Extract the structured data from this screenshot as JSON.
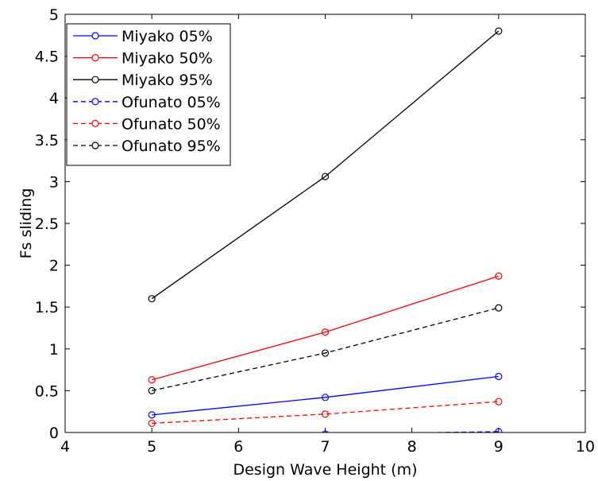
{
  "chart_data": {
    "type": "line",
    "title": "",
    "xlabel": "Design Wave Height (m)",
    "ylabel": "Fs sliding",
    "xlim": [
      4,
      10
    ],
    "ylim": [
      0,
      5
    ],
    "xticks": [
      4,
      5,
      6,
      7,
      8,
      9,
      10
    ],
    "yticks": [
      0,
      0.5,
      1,
      1.5,
      2,
      2.5,
      3,
      3.5,
      4,
      4.5,
      5
    ],
    "xtick_labels": [
      "4",
      "5",
      "6",
      "7",
      "8",
      "9",
      "10"
    ],
    "ytick_labels": [
      "0",
      "0.5",
      "1",
      "1.5",
      "2",
      "2.5",
      "3",
      "3.5",
      "4",
      "4.5",
      "5"
    ],
    "grid": false,
    "legend_position": "top-left",
    "x": [
      5,
      7,
      9
    ],
    "series": [
      {
        "name": "Miyako  05%",
        "values": [
          0.21,
          0.42,
          0.67
        ],
        "color": "#0000ff",
        "dash": "solid",
        "marker": "circle"
      },
      {
        "name": "Miyako  50%",
        "values": [
          0.63,
          1.2,
          1.87
        ],
        "color": "#ff0000",
        "dash": "solid",
        "marker": "circle"
      },
      {
        "name": "Miyako  95%",
        "values": [
          1.6,
          3.06,
          4.8
        ],
        "color": "#000000",
        "dash": "solid",
        "marker": "circle"
      },
      {
        "name": "Ofunato 05%",
        "values": [
          -0.05,
          -0.02,
          0.01
        ],
        "color": "#0000ff",
        "dash": "dashed",
        "marker": "circle"
      },
      {
        "name": "Ofunato 50%",
        "values": [
          0.11,
          0.22,
          0.37
        ],
        "color": "#ff0000",
        "dash": "dashed",
        "marker": "circle"
      },
      {
        "name": "Ofunato 95%",
        "values": [
          0.5,
          0.95,
          1.49
        ],
        "color": "#000000",
        "dash": "dashed",
        "marker": "circle"
      }
    ]
  }
}
